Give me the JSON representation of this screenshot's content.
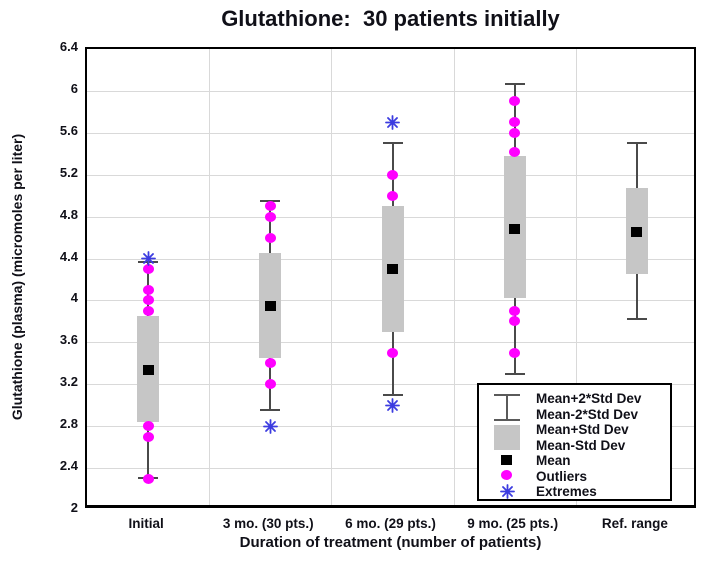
{
  "title": "Glutathione:  30 patients initially",
  "y_axis": {
    "label": "Glutathione (plasma) (micromoles per liter)",
    "tick_values": [
      2,
      2.4,
      2.8,
      3.2,
      3.6,
      4,
      4.4,
      4.8,
      5.2,
      5.6,
      6,
      6.4
    ],
    "min": 2,
    "max": 6.4
  },
  "x_axis": {
    "label": "Duration of treatment (number of patients)",
    "categories": [
      "Initial",
      "3 mo. (30 pts.)",
      "6 mo. (29 pts.)",
      "9 mo. (25 pts.)",
      "Ref. range"
    ]
  },
  "legend": {
    "items": [
      {
        "label": "Mean+2*Std Dev",
        "marker": "whisker"
      },
      {
        "label": "Mean-2*Std Dev",
        "marker": "whisker"
      },
      {
        "label": "Mean+Std Dev",
        "marker": "box"
      },
      {
        "label": "Mean-Std Dev",
        "marker": "box"
      },
      {
        "label": "Mean",
        "marker": "mean"
      },
      {
        "label": "Outliers",
        "marker": "outlier"
      },
      {
        "label": "Extremes",
        "marker": "extreme"
      }
    ]
  },
  "colors": {
    "box_fill": "#c6c6c6",
    "whisker": "#4a4a4a",
    "mean": "#000000",
    "outlier": "#ff00ff",
    "extreme": "#3c3ce0",
    "grid": "#d9d9d9",
    "text": "#101018",
    "frame": "#000000"
  },
  "chart_data": {
    "type": "box",
    "title": "Glutathione:  30 patients initially",
    "xlabel": "Duration of treatment (number of patients)",
    "ylabel": "Glutathione (plasma) (micromoles per liter)",
    "ylim": [
      2,
      6.4
    ],
    "ytick_step": 0.4,
    "grid": true,
    "legend_position": "bottom-right",
    "categories": [
      "Initial",
      "3 mo. (30 pts.)",
      "6 mo. (29 pts.)",
      "9 mo. (25 pts.)",
      "Ref. range"
    ],
    "series": [
      {
        "name": "Initial",
        "mean": 3.34,
        "box_low": 2.84,
        "box_high": 3.85,
        "whisker_low": 2.31,
        "whisker_high": 4.37,
        "outliers": [
          4.3,
          4.1,
          4.0,
          3.9,
          2.8,
          2.7,
          2.3
        ],
        "extremes": [
          4.4
        ]
      },
      {
        "name": "3 mo. (30 pts.)",
        "mean": 3.95,
        "box_low": 3.45,
        "box_high": 4.45,
        "whisker_low": 2.95,
        "whisker_high": 4.95,
        "outliers": [
          4.9,
          4.8,
          4.6,
          3.4,
          3.2
        ],
        "extremes": [
          2.8
        ]
      },
      {
        "name": "6 mo. (29 pts.)",
        "mean": 4.3,
        "box_low": 3.7,
        "box_high": 4.9,
        "whisker_low": 3.1,
        "whisker_high": 5.5,
        "outliers": [
          5.2,
          5.0,
          3.5
        ],
        "extremes": [
          5.7,
          3.0
        ]
      },
      {
        "name": "9 mo. (25 pts.)",
        "mean": 4.68,
        "box_low": 4.02,
        "box_high": 5.38,
        "whisker_low": 3.3,
        "whisker_high": 6.07,
        "outliers": [
          5.9,
          5.7,
          5.6,
          5.42,
          3.9,
          3.8,
          3.5
        ],
        "extremes": []
      },
      {
        "name": "Ref. range",
        "mean": 4.65,
        "box_low": 4.25,
        "box_high": 5.07,
        "whisker_low": 3.82,
        "whisker_high": 5.5,
        "outliers": [],
        "extremes": []
      }
    ]
  }
}
